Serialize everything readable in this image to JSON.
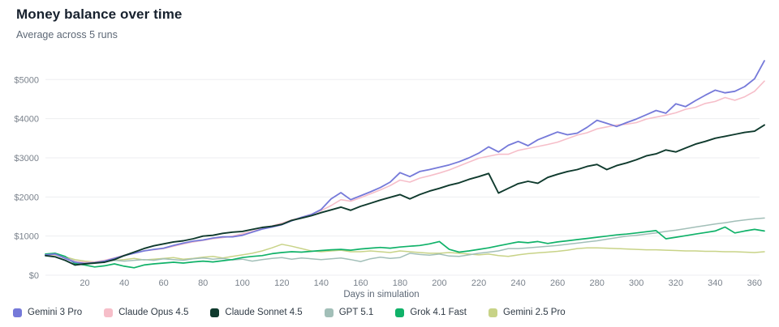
{
  "header": {
    "title": "Money balance over time",
    "subtitle": "Average across 5 runs"
  },
  "chart_data": {
    "type": "line",
    "title": "Money balance over time",
    "subtitle": "Average across 5 runs",
    "xlabel": "Days in simulation",
    "ylabel": "",
    "xlim": [
      0,
      365
    ],
    "ylim": [
      0,
      5500
    ],
    "grid": "horizontal",
    "legend_position": "bottom-left",
    "xticks": [
      20,
      40,
      60,
      80,
      100,
      120,
      140,
      160,
      180,
      200,
      220,
      240,
      260,
      280,
      300,
      320,
      340,
      360
    ],
    "yticks": [
      {
        "value": 0,
        "label": "$0"
      },
      {
        "value": 1000,
        "label": "$1000"
      },
      {
        "value": 2000,
        "label": "$2000"
      },
      {
        "value": 3000,
        "label": "$3000"
      },
      {
        "value": 4000,
        "label": "$4000"
      },
      {
        "value": 5000,
        "label": "$5000"
      }
    ],
    "x": [
      0,
      5,
      10,
      15,
      20,
      25,
      30,
      35,
      40,
      45,
      50,
      55,
      60,
      65,
      70,
      75,
      80,
      85,
      90,
      95,
      100,
      105,
      110,
      115,
      120,
      125,
      130,
      135,
      140,
      145,
      150,
      155,
      160,
      165,
      170,
      175,
      180,
      185,
      190,
      195,
      200,
      205,
      210,
      215,
      220,
      225,
      230,
      235,
      240,
      245,
      250,
      255,
      260,
      265,
      270,
      275,
      280,
      285,
      290,
      295,
      300,
      305,
      310,
      315,
      320,
      325,
      330,
      335,
      340,
      345,
      350,
      355,
      360,
      365
    ],
    "series": [
      {
        "name": "Gemini 3 Pro",
        "color": "#7579d9",
        "width": 1.8,
        "z": 5,
        "values": [
          520,
          540,
          430,
          330,
          300,
          320,
          360,
          430,
          500,
          560,
          620,
          660,
          690,
          760,
          820,
          870,
          900,
          950,
          980,
          980,
          1020,
          1100,
          1180,
          1230,
          1290,
          1390,
          1480,
          1550,
          1680,
          1950,
          2110,
          1930,
          2030,
          2130,
          2240,
          2380,
          2620,
          2520,
          2650,
          2700,
          2760,
          2820,
          2900,
          3000,
          3120,
          3280,
          3150,
          3320,
          3420,
          3310,
          3460,
          3560,
          3660,
          3590,
          3630,
          3780,
          3960,
          3880,
          3800,
          3900,
          3990,
          4100,
          4210,
          4140,
          4380,
          4310,
          4460,
          4600,
          4730,
          4660,
          4700,
          4820,
          5020,
          5480
        ]
      },
      {
        "name": "Claude Opus 4.5",
        "color": "#f6bec9",
        "width": 1.6,
        "z": 4,
        "values": [
          510,
          530,
          440,
          350,
          330,
          340,
          380,
          440,
          510,
          570,
          620,
          650,
          680,
          740,
          800,
          850,
          890,
          930,
          960,
          1000,
          1060,
          1120,
          1190,
          1260,
          1330,
          1410,
          1480,
          1560,
          1650,
          1780,
          1930,
          1890,
          1980,
          2080,
          2180,
          2290,
          2430,
          2380,
          2480,
          2540,
          2610,
          2690,
          2790,
          2890,
          2990,
          3040,
          3090,
          3090,
          3190,
          3240,
          3290,
          3340,
          3400,
          3490,
          3580,
          3640,
          3740,
          3790,
          3840,
          3860,
          3900,
          3990,
          4040,
          4090,
          4150,
          4240,
          4290,
          4390,
          4440,
          4540,
          4470,
          4560,
          4700,
          4960
        ]
      },
      {
        "name": "Claude Sonnet 4.5",
        "color": "#0f3a2d",
        "width": 1.9,
        "z": 6,
        "values": [
          500,
          470,
          380,
          260,
          290,
          310,
          330,
          400,
          500,
          590,
          680,
          750,
          800,
          850,
          880,
          930,
          1000,
          1020,
          1070,
          1100,
          1120,
          1170,
          1220,
          1250,
          1300,
          1400,
          1460,
          1520,
          1600,
          1670,
          1740,
          1660,
          1760,
          1840,
          1920,
          1990,
          2060,
          1950,
          2060,
          2150,
          2220,
          2300,
          2360,
          2450,
          2520,
          2600,
          2100,
          2220,
          2340,
          2400,
          2350,
          2500,
          2580,
          2650,
          2700,
          2780,
          2830,
          2700,
          2800,
          2870,
          2950,
          3050,
          3100,
          3200,
          3150,
          3250,
          3350,
          3420,
          3500,
          3550,
          3600,
          3650,
          3680,
          3840
        ]
      },
      {
        "name": "GPT 5.1",
        "color": "#a2bfb8",
        "width": 1.5,
        "z": 2,
        "values": [
          520,
          540,
          460,
          360,
          310,
          330,
          350,
          380,
          360,
          380,
          400,
          380,
          420,
          400,
          380,
          420,
          440,
          410,
          430,
          390,
          410,
          360,
          400,
          430,
          450,
          410,
          440,
          420,
          400,
          420,
          440,
          400,
          350,
          420,
          460,
          430,
          450,
          560,
          530,
          510,
          540,
          490,
          480,
          520,
          560,
          590,
          620,
          680,
          680,
          700,
          720,
          740,
          760,
          790,
          820,
          850,
          880,
          920,
          960,
          1000,
          1020,
          1050,
          1080,
          1120,
          1150,
          1190,
          1230,
          1270,
          1310,
          1340,
          1380,
          1410,
          1440,
          1460
        ]
      },
      {
        "name": "Grok 4.1 Fast",
        "color": "#10b269",
        "width": 1.7,
        "z": 3,
        "values": [
          540,
          560,
          480,
          300,
          260,
          210,
          240,
          290,
          230,
          190,
          260,
          290,
          310,
          330,
          310,
          340,
          360,
          340,
          370,
          400,
          450,
          480,
          500,
          550,
          580,
          600,
          590,
          610,
          630,
          650,
          660,
          640,
          670,
          690,
          710,
          690,
          720,
          740,
          760,
          800,
          860,
          660,
          590,
          620,
          660,
          700,
          750,
          800,
          850,
          830,
          860,
          810,
          850,
          880,
          910,
          940,
          970,
          1000,
          1030,
          1050,
          1080,
          1110,
          1140,
          930,
          970,
          1010,
          1050,
          1090,
          1130,
          1230,
          1080,
          1130,
          1170,
          1130
        ]
      },
      {
        "name": "Gemini 2.5 Pro",
        "color": "#c8d387",
        "width": 1.5,
        "z": 1,
        "values": [
          500,
          520,
          470,
          400,
          360,
          340,
          360,
          380,
          400,
          430,
          390,
          410,
          430,
          450,
          410,
          430,
          460,
          480,
          440,
          480,
          520,
          560,
          620,
          700,
          790,
          740,
          680,
          620,
          600,
          620,
          640,
          600,
          600,
          620,
          600,
          580,
          620,
          600,
          580,
          560,
          560,
          580,
          560,
          540,
          520,
          540,
          500,
          480,
          520,
          550,
          570,
          590,
          610,
          640,
          680,
          700,
          700,
          690,
          680,
          670,
          660,
          650,
          650,
          640,
          630,
          620,
          620,
          610,
          610,
          600,
          600,
          590,
          580,
          600
        ]
      }
    ]
  }
}
